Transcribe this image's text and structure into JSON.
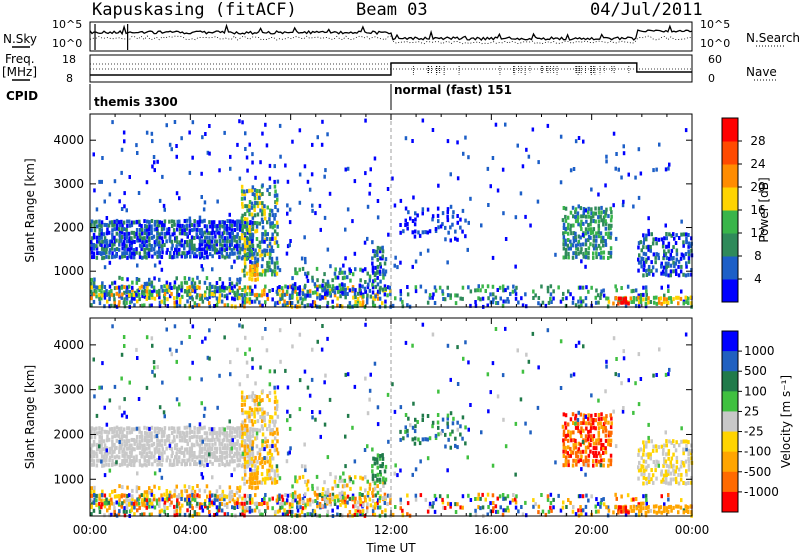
{
  "header": {
    "station": "Kapuskasing (fitACF)",
    "beam": "Beam 03",
    "date": "04/Jul/2011"
  },
  "params": {
    "nsky_label": "N.Sky",
    "nsearch_label": "N.Search",
    "freq_label": "Freq.",
    "freq_unit": "[MHz]",
    "nave_label": "Nave",
    "cpid_label": "CPID",
    "cpid_modes": [
      "themis 3300",
      "normal (fast) 151"
    ],
    "noise_ticks": [
      "10^5",
      "10^0"
    ],
    "freq_ticks": [
      "18",
      "8"
    ],
    "nave_ticks": [
      "60",
      "0"
    ]
  },
  "colors": {
    "power_scale": [
      "#0000ff",
      "#1c5fc7",
      "#2f8a5a",
      "#39b54a",
      "#ffd400",
      "#ff8c00",
      "#ff4a00",
      "#ff0000"
    ],
    "velocity_scale": [
      "#0000ff",
      "#2060c0",
      "#207a4a",
      "#40c040",
      "#c8c8c8",
      "#ffd400",
      "#ffa500",
      "#ff6a00",
      "#ff0000"
    ]
  },
  "chart_data": [
    {
      "type": "heatmap",
      "name": "power",
      "xlabel": "Time UT",
      "ylabel": "Slant Range [km]",
      "x_ticks": [
        "00:00",
        "04:00",
        "08:00",
        "12:00",
        "16:00",
        "20:00",
        "00:00"
      ],
      "x_range_hours": [
        0,
        24
      ],
      "y_ticks": [
        "1000",
        "2000",
        "3000",
        "4000"
      ],
      "ylim": [
        180,
        4600
      ],
      "colorbar": {
        "label": "Power [dB]",
        "ticks": [
          "4",
          "8",
          "12",
          "16",
          "20",
          "24",
          "28"
        ],
        "range": [
          0,
          32
        ]
      },
      "mode_change_hour": 12.0
    },
    {
      "type": "heatmap",
      "name": "velocity",
      "xlabel": "Time UT",
      "ylabel": "Slant Range [km]",
      "x_ticks": [
        "00:00",
        "04:00",
        "08:00",
        "12:00",
        "16:00",
        "20:00",
        "00:00"
      ],
      "x_range_hours": [
        0,
        24
      ],
      "y_ticks": [
        "1000",
        "2000",
        "3000",
        "4000"
      ],
      "ylim": [
        180,
        4600
      ],
      "colorbar": {
        "label": "Velocity [m s⁻¹]",
        "ticks": [
          "1000",
          "500",
          "100",
          "25",
          "-25",
          "-100",
          "-500",
          "-1000"
        ]
      },
      "mode_change_hour": 12.0
    }
  ]
}
